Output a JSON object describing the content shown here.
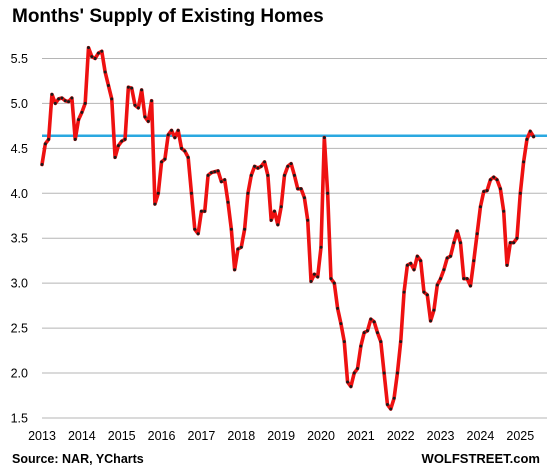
{
  "title": "Months' Supply of Existing Homes",
  "source": "Source: NAR, YCharts",
  "watermark": "WOLFSTREET.com",
  "chart_data": {
    "type": "line",
    "title": "Months' Supply of Existing Homes",
    "xlabel": "",
    "ylabel": "",
    "x_ticks": [
      "2013",
      "2014",
      "2015",
      "2016",
      "2017",
      "2018",
      "2019",
      "2020",
      "2021",
      "2022",
      "2023",
      "2024",
      "2025"
    ],
    "y_ticks": [
      "1.5",
      "2.0",
      "2.5",
      "3.0",
      "3.5",
      "4.0",
      "4.5",
      "5.0",
      "5.5"
    ],
    "xlim": [
      2013.0,
      2025.67
    ],
    "ylim": [
      1.5,
      5.75
    ],
    "grid": "horizontal",
    "reference_line": 4.64,
    "colors": {
      "line": "#ee1111",
      "markers": "#1a1a1a",
      "reference": "#2aa8e0",
      "grid": "#b5b5b5"
    },
    "series": [
      {
        "x_start": 2013.0,
        "x_step_months": 1,
        "values": [
          4.32,
          4.55,
          4.6,
          5.1,
          5.0,
          5.05,
          5.06,
          5.03,
          5.02,
          5.06,
          4.6,
          4.82,
          4.9,
          5.0,
          5.62,
          5.52,
          5.5,
          5.56,
          5.58,
          5.35,
          5.2,
          5.05,
          4.4,
          4.53,
          4.58,
          4.6,
          5.18,
          5.17,
          4.98,
          4.95,
          5.15,
          4.85,
          4.8,
          5.03,
          3.88,
          4.0,
          4.35,
          4.38,
          4.65,
          4.7,
          4.62,
          4.7,
          4.5,
          4.47,
          4.4,
          4.0,
          3.6,
          3.55,
          3.8,
          3.8,
          4.2,
          4.23,
          4.24,
          4.25,
          4.13,
          4.15,
          3.9,
          3.6,
          3.15,
          3.38,
          3.4,
          3.6,
          4.0,
          4.2,
          4.3,
          4.28,
          4.3,
          4.35,
          4.2,
          3.7,
          3.8,
          3.65,
          3.85,
          4.2,
          4.3,
          4.33,
          4.2,
          4.05,
          4.05,
          3.95,
          3.7,
          3.02,
          3.1,
          3.07,
          3.4,
          4.62,
          4.0,
          3.05,
          3.0,
          2.72,
          2.55,
          2.35,
          1.9,
          1.85,
          2.0,
          2.05,
          2.3,
          2.45,
          2.47,
          2.6,
          2.57,
          2.45,
          2.35,
          2.0,
          1.65,
          1.6,
          1.72,
          2.0,
          2.35,
          2.9,
          3.2,
          3.22,
          3.15,
          3.3,
          3.25,
          2.9,
          2.87,
          2.58,
          2.7,
          2.98,
          3.05,
          3.15,
          3.28,
          3.3,
          3.45,
          3.58,
          3.45,
          3.05,
          3.05,
          2.97,
          3.25,
          3.55,
          3.85,
          4.02,
          4.03,
          4.15,
          4.18,
          4.15,
          4.05,
          3.8,
          3.2,
          3.45,
          3.45,
          3.5,
          4.0,
          4.35,
          4.6,
          4.69,
          4.63
        ]
      }
    ]
  }
}
